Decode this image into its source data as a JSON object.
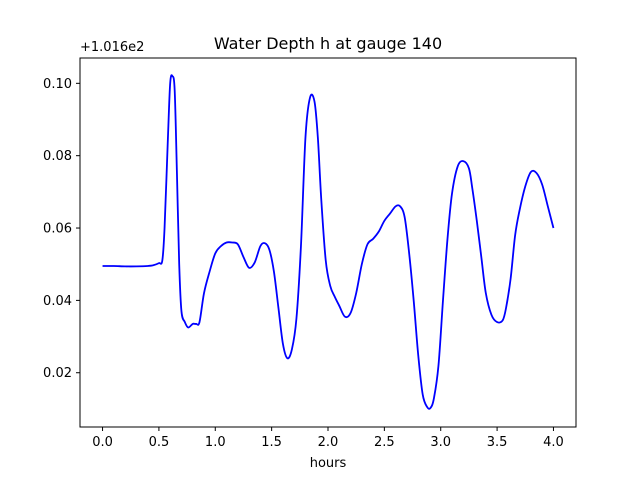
{
  "chart_data": {
    "type": "line",
    "title": "Water Depth h at gauge 140",
    "xlabel": "hours",
    "ylabel": "",
    "y_offset_label": "+1.016e2",
    "xlim": [
      -0.2,
      4.2
    ],
    "ylim": [
      0.005,
      0.107
    ],
    "x_ticks": [
      0.0,
      0.5,
      1.0,
      1.5,
      2.0,
      2.5,
      3.0,
      3.5,
      4.0
    ],
    "x_tick_labels": [
      "0.0",
      "0.5",
      "1.0",
      "1.5",
      "2.0",
      "2.5",
      "3.0",
      "3.5",
      "4.0"
    ],
    "y_ticks": [
      0.02,
      0.04,
      0.06,
      0.08,
      0.1
    ],
    "y_tick_labels": [
      "0.02",
      "0.04",
      "0.06",
      "0.08",
      "0.10"
    ],
    "grid": false,
    "series": [
      {
        "color": "#0000ff",
        "x": [
          0.0,
          0.1,
          0.2,
          0.3,
          0.4,
          0.45,
          0.5,
          0.53,
          0.55,
          0.58,
          0.6,
          0.62,
          0.64,
          0.66,
          0.68,
          0.7,
          0.73,
          0.76,
          0.8,
          0.83,
          0.86,
          0.9,
          0.95,
          1.0,
          1.05,
          1.1,
          1.15,
          1.2,
          1.25,
          1.3,
          1.35,
          1.4,
          1.44,
          1.48,
          1.52,
          1.56,
          1.6,
          1.64,
          1.68,
          1.72,
          1.76,
          1.8,
          1.84,
          1.88,
          1.91,
          1.94,
          1.98,
          2.02,
          2.06,
          2.1,
          2.15,
          2.2,
          2.25,
          2.3,
          2.35,
          2.4,
          2.45,
          2.5,
          2.55,
          2.6,
          2.64,
          2.68,
          2.72,
          2.76,
          2.8,
          2.84,
          2.88,
          2.91,
          2.94,
          2.98,
          3.02,
          3.06,
          3.1,
          3.15,
          3.2,
          3.25,
          3.28,
          3.32,
          3.36,
          3.4,
          3.45,
          3.5,
          3.55,
          3.58,
          3.62,
          3.66,
          3.7,
          3.75,
          3.8,
          3.85,
          3.9,
          3.95,
          4.0
        ],
        "y": [
          0.0495,
          0.0495,
          0.0494,
          0.0494,
          0.0495,
          0.0497,
          0.0503,
          0.051,
          0.06,
          0.085,
          0.1,
          0.102,
          0.098,
          0.075,
          0.05,
          0.037,
          0.034,
          0.0325,
          0.0335,
          0.0335,
          0.034,
          0.042,
          0.048,
          0.053,
          0.055,
          0.056,
          0.056,
          0.0555,
          0.052,
          0.049,
          0.0505,
          0.055,
          0.0558,
          0.054,
          0.048,
          0.038,
          0.028,
          0.024,
          0.0265,
          0.035,
          0.055,
          0.085,
          0.096,
          0.095,
          0.085,
          0.068,
          0.051,
          0.044,
          0.041,
          0.0385,
          0.0355,
          0.0365,
          0.042,
          0.05,
          0.0555,
          0.057,
          0.059,
          0.062,
          0.064,
          0.066,
          0.066,
          0.063,
          0.053,
          0.04,
          0.025,
          0.014,
          0.0105,
          0.0103,
          0.013,
          0.022,
          0.04,
          0.057,
          0.0695,
          0.077,
          0.0785,
          0.0765,
          0.071,
          0.062,
          0.052,
          0.042,
          0.036,
          0.034,
          0.0345,
          0.038,
          0.046,
          0.058,
          0.065,
          0.0715,
          0.0755,
          0.0752,
          0.072,
          0.066,
          0.06
        ]
      }
    ]
  }
}
